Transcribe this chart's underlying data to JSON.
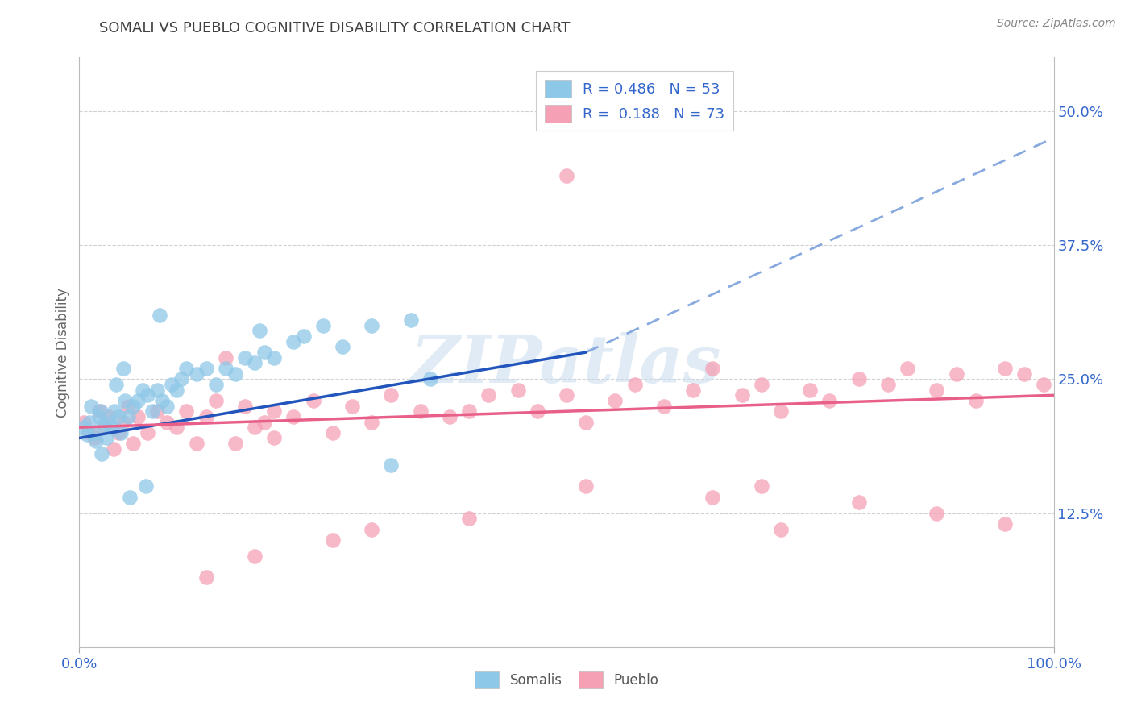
{
  "title": "SOMALI VS PUEBLO COGNITIVE DISABILITY CORRELATION CHART",
  "source": "Source: ZipAtlas.com",
  "ylabel": "Cognitive Disability",
  "ytick_labels": [
    "12.5%",
    "25.0%",
    "37.5%",
    "50.0%"
  ],
  "ytick_values": [
    12.5,
    25.0,
    37.5,
    50.0
  ],
  "xlim": [
    0,
    100
  ],
  "ylim": [
    0,
    55
  ],
  "ymax_display": 50,
  "somali_R": 0.486,
  "somali_N": 53,
  "pueblo_R": 0.188,
  "pueblo_N": 73,
  "somali_color": "#8EC8E8",
  "pueblo_color": "#F5A0B5",
  "somali_line_color": "#2255BB",
  "somali_dash_color": "#88AADE",
  "pueblo_line_color": "#E8608A",
  "background_color": "#FFFFFF",
  "grid_color": "#CCCCCC",
  "watermark_text": "ZIPatlas",
  "watermark_color": "#DDEEFF",
  "legend_label_somali": "Somalis",
  "legend_label_pueblo": "Pueblo",
  "title_color": "#404040",
  "source_color": "#888888",
  "axis_color": "#3366CC",
  "somali_line_x0": 0,
  "somali_line_x1": 52,
  "somali_line_y0": 19.5,
  "somali_line_y1": 27.5,
  "somali_dash_x0": 52,
  "somali_dash_x1": 100,
  "somali_dash_y0": 27.5,
  "somali_dash_y1": 47.5,
  "pueblo_line_x0": 0,
  "pueblo_line_x1": 100,
  "pueblo_line_y0": 20.5,
  "pueblo_line_y1": 23.5,
  "somali_dots_x": [
    0.5,
    0.8,
    1.0,
    1.2,
    1.5,
    1.7,
    2.0,
    2.2,
    2.5,
    2.8,
    3.0,
    3.3,
    3.6,
    4.0,
    4.3,
    4.7,
    5.0,
    5.5,
    6.0,
    6.5,
    7.0,
    7.5,
    8.0,
    8.5,
    9.0,
    9.5,
    10.0,
    10.5,
    11.0,
    12.0,
    13.0,
    14.0,
    15.0,
    16.0,
    17.0,
    18.0,
    19.0,
    20.0,
    22.0,
    23.0,
    25.0,
    27.0,
    30.0,
    32.0,
    34.0,
    36.0,
    18.5,
    4.5,
    2.3,
    6.8,
    8.2,
    5.2,
    3.8
  ],
  "somali_dots_y": [
    20.5,
    19.8,
    21.0,
    22.5,
    20.0,
    19.2,
    21.5,
    22.0,
    20.8,
    19.5,
    21.0,
    20.5,
    22.0,
    21.5,
    20.0,
    23.0,
    21.5,
    22.5,
    23.0,
    24.0,
    23.5,
    22.0,
    24.0,
    23.0,
    22.5,
    24.5,
    24.0,
    25.0,
    26.0,
    25.5,
    26.0,
    24.5,
    26.0,
    25.5,
    27.0,
    26.5,
    27.5,
    27.0,
    28.5,
    29.0,
    30.0,
    28.0,
    30.0,
    17.0,
    30.5,
    25.0,
    29.5,
    26.0,
    18.0,
    15.0,
    31.0,
    14.0,
    24.5
  ],
  "pueblo_dots_x": [
    0.5,
    1.0,
    1.5,
    2.0,
    2.5,
    3.0,
    3.5,
    4.0,
    4.5,
    5.0,
    5.5,
    6.0,
    7.0,
    8.0,
    9.0,
    10.0,
    11.0,
    12.0,
    13.0,
    14.0,
    15.0,
    16.0,
    17.0,
    18.0,
    19.0,
    20.0,
    22.0,
    24.0,
    26.0,
    28.0,
    30.0,
    32.0,
    35.0,
    38.0,
    40.0,
    42.0,
    45.0,
    47.0,
    50.0,
    52.0,
    55.0,
    57.0,
    60.0,
    63.0,
    65.0,
    68.0,
    70.0,
    72.0,
    75.0,
    77.0,
    80.0,
    83.0,
    85.0,
    88.0,
    90.0,
    92.0,
    95.0,
    97.0,
    99.0,
    20.0,
    18.0,
    13.0,
    26.0,
    30.0,
    40.0,
    52.0,
    65.0,
    72.0,
    80.0,
    88.0,
    95.0,
    50.0,
    70.0
  ],
  "pueblo_dots_y": [
    21.0,
    20.0,
    19.5,
    22.0,
    20.5,
    21.5,
    18.5,
    20.0,
    21.0,
    22.5,
    19.0,
    21.5,
    20.0,
    22.0,
    21.0,
    20.5,
    22.0,
    19.0,
    21.5,
    23.0,
    27.0,
    19.0,
    22.5,
    20.5,
    21.0,
    22.0,
    21.5,
    23.0,
    20.0,
    22.5,
    21.0,
    23.5,
    22.0,
    21.5,
    22.0,
    23.5,
    24.0,
    22.0,
    23.5,
    21.0,
    23.0,
    24.5,
    22.5,
    24.0,
    26.0,
    23.5,
    24.5,
    22.0,
    24.0,
    23.0,
    25.0,
    24.5,
    26.0,
    24.0,
    25.5,
    23.0,
    26.0,
    25.5,
    24.5,
    19.5,
    8.5,
    6.5,
    10.0,
    11.0,
    12.0,
    15.0,
    14.0,
    11.0,
    13.5,
    12.5,
    11.5,
    44.0,
    15.0
  ]
}
